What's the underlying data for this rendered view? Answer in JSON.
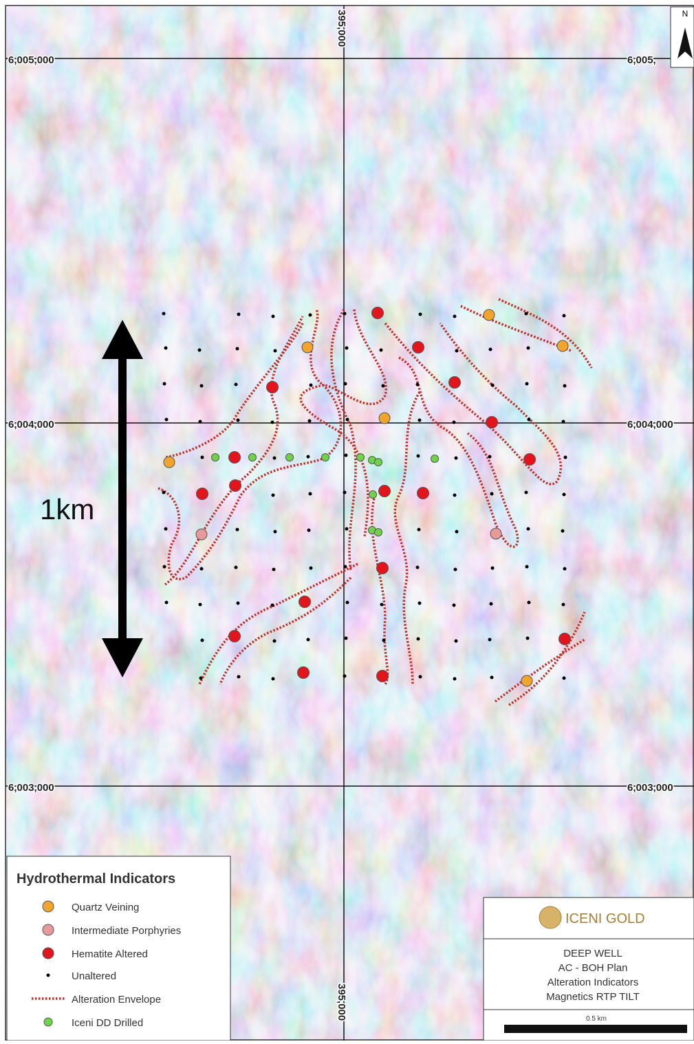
{
  "north": "N",
  "grid_labels": {
    "northings_left": [
      "6,005,000",
      "6,004,000",
      "6,003,000"
    ],
    "northings_right": [
      "6,005,",
      "6,004,000",
      "6,003,000"
    ],
    "easting_top": "395,000",
    "easting_bottom": "395,000"
  },
  "scale_arrow_label": "1km",
  "legend": {
    "title": "Hydrothermal Indicators",
    "items": [
      "Quartz Veining",
      "Intermediate Porphyries",
      "Hematite Altered",
      "Unaltered",
      "Alteration Envelope",
      "Iceni DD Drilled"
    ]
  },
  "title_block": {
    "company": "ICENI GOLD",
    "lines": [
      "DEEP WELL",
      "AC - BOH Plan",
      "Alteration Indicators",
      "Magnetics RTP TILT"
    ],
    "scale_bar_label": "0.5 km"
  }
}
